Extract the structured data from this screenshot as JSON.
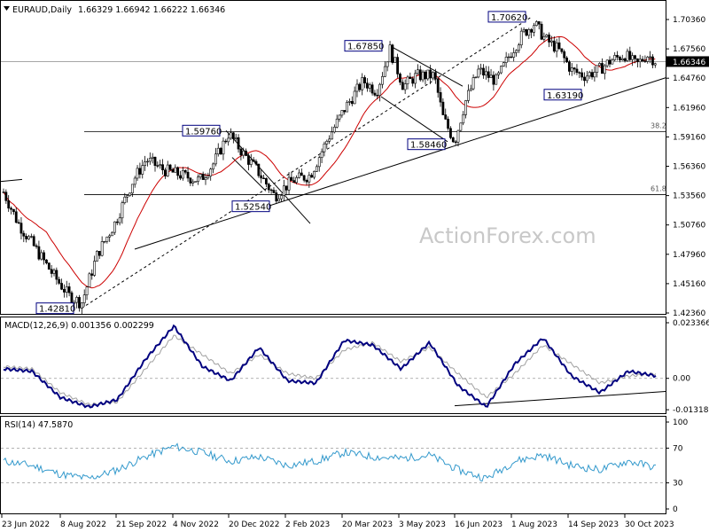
{
  "header": {
    "symbol": "EURAUD,Daily",
    "ohlc": "1.66329 1.66942 1.66222 1.66346"
  },
  "watermark": "ActionForex.com",
  "colors": {
    "bull": "#ffffff",
    "bear": "#000000",
    "ma": "#cc0000",
    "macd": "#00007f",
    "signal": "#a0a0a0",
    "rsi": "#3399cc",
    "grid": "#000000"
  },
  "chart_data": [
    {
      "type": "candlestick",
      "title": "EURAUD,Daily",
      "ylim": [
        1.4236,
        1.7036
      ],
      "y_ticks": [
        "1.70360",
        "1.67560",
        "1.64760",
        "1.61960",
        "1.59160",
        "1.56360",
        "1.53560",
        "1.50760",
        "1.47960",
        "1.45160",
        "1.42360"
      ],
      "last_price": "1.66346",
      "x_tick_labels": [
        "23 Jun 2022",
        "8 Aug 2022",
        "21 Sep 2022",
        "4 Nov 2022",
        "20 Dec 2022",
        "2 Feb 2023",
        "20 Mar 2023",
        "3 May 2023",
        "16 Jun 2023",
        "1 Aug 2023",
        "14 Sep 2023",
        "30 Oct 2023"
      ],
      "key_levels": [
        {
          "label": "1.42810",
          "value": 1.4281
        },
        {
          "label": "1.59760",
          "value": 1.5976
        },
        {
          "label": "1.52540",
          "value": 1.5254
        },
        {
          "label": "1.67850",
          "value": 1.6785
        },
        {
          "label": "1.58460",
          "value": 1.5846
        },
        {
          "label": "1.70620",
          "value": 1.7062
        },
        {
          "label": "1.63190",
          "value": 1.6319
        }
      ],
      "fib_levels": [
        {
          "label": "38.2",
          "value": 1.5966
        },
        {
          "label": "61.8",
          "value": 1.5366
        }
      ],
      "close_path": [
        {
          "x": "23 Jun 2022",
          "y": 1.539
        },
        {
          "x": "8 Aug 2022",
          "y": 1.435
        },
        {
          "x": "21 Sep 2022",
          "y": 1.55
        },
        {
          "x": "4 Nov 2022",
          "y": 1.54
        },
        {
          "x": "20 Dec 2022",
          "y": 1.57
        },
        {
          "x": "2 Feb 2023",
          "y": 1.53
        },
        {
          "x": "20 Mar 2023",
          "y": 1.6
        },
        {
          "x": "3 May 2023",
          "y": 1.655
        },
        {
          "x": "16 Jun 2023",
          "y": 1.587
        },
        {
          "x": "1 Aug 2023",
          "y": 1.655
        },
        {
          "x": "14 Sep 2023",
          "y": 1.64
        },
        {
          "x": "30 Oct 2023",
          "y": 1.665
        }
      ],
      "moving_average": "red line"
    },
    {
      "type": "line",
      "title": "MACD(12,26,9) 0.001356 0.002299",
      "ylim": [
        -0.01315,
        0.02337
      ],
      "y_ticks": [
        "0.023366",
        "0.00",
        "-0.013186"
      ],
      "series": [
        {
          "name": "MACD",
          "values": [
            0.004,
            0.003,
            -0.008,
            -0.012,
            -0.009,
            0.008,
            0.022,
            0.005,
            -0.001,
            0.013,
            -0.001,
            -0.002,
            0.016,
            0.014,
            0.004,
            0.015,
            -0.003,
            -0.012,
            0.006,
            0.017,
            0.001,
            -0.006,
            0.003,
            0.001
          ]
        },
        {
          "name": "Signal",
          "values": [
            0.005,
            0.004,
            -0.006,
            -0.011,
            -0.01,
            0.004,
            0.018,
            0.01,
            0.002,
            0.01,
            0.002,
            0.0,
            0.012,
            0.015,
            0.007,
            0.013,
            0.002,
            -0.008,
            0.002,
            0.014,
            0.006,
            -0.002,
            0.001,
            0.002
          ]
        }
      ]
    },
    {
      "type": "line",
      "title": "RSI(14) 47.5870",
      "ylim": [
        0,
        100
      ],
      "y_ticks": [
        "100",
        "70",
        "30",
        "0"
      ],
      "series": [
        {
          "name": "RSI",
          "values": [
            55,
            50,
            40,
            35,
            45,
            60,
            72,
            65,
            55,
            60,
            50,
            55,
            65,
            60,
            58,
            62,
            45,
            35,
            55,
            62,
            50,
            45,
            55,
            47.587
          ]
        }
      ]
    }
  ]
}
